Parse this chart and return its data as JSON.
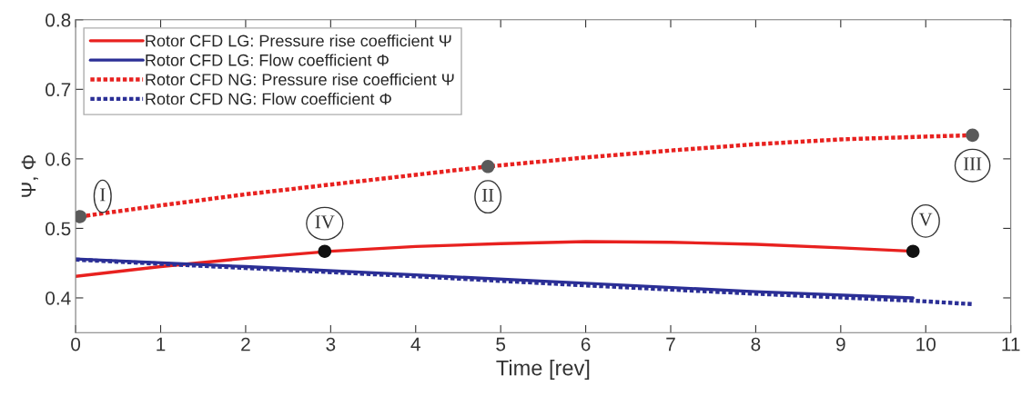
{
  "chart_data": {
    "type": "line",
    "xlabel": "Time [rev]",
    "ylabel": "Ψ, Φ",
    "xlim": [
      0,
      11
    ],
    "xticks": [
      0,
      1,
      2,
      3,
      4,
      5,
      6,
      7,
      8,
      9,
      10,
      11
    ],
    "ylim": [
      0.35,
      0.8
    ],
    "yticks": [
      0.4,
      0.5,
      0.6,
      0.7,
      0.8
    ],
    "grid": false,
    "legend": "top left",
    "marker": "none",
    "series": [
      {
        "name": "Rotor CFD LG: Pressure rise coefficient Ψ",
        "color": "#e8211f",
        "line_style": "solid",
        "x": [
          0,
          1,
          2,
          3,
          4,
          5,
          6,
          7,
          8,
          9,
          9.85
        ],
        "values": [
          0.431,
          0.445,
          0.457,
          0.467,
          0.474,
          0.478,
          0.481,
          0.48,
          0.477,
          0.472,
          0.467
        ]
      },
      {
        "name": "Rotor CFD LG: Flow coefficient Φ",
        "color": "#2b2f96",
        "line_style": "solid",
        "x": [
          0,
          2,
          4,
          6,
          8,
          9.85
        ],
        "values": [
          0.456,
          0.445,
          0.433,
          0.421,
          0.409,
          0.4
        ]
      },
      {
        "name": "Rotor CFD NG: Pressure rise coefficient Ψ",
        "color": "#e8211f",
        "line_style": "dotted",
        "x": [
          0.05,
          1,
          2,
          3,
          4,
          4.85,
          6,
          7,
          8,
          9,
          10,
          10.55
        ],
        "values": [
          0.517,
          0.533,
          0.549,
          0.563,
          0.577,
          0.589,
          0.602,
          0.612,
          0.621,
          0.628,
          0.632,
          0.634
        ]
      },
      {
        "name": "Rotor CFD NG: Flow coefficient Φ",
        "color": "#2b2f96",
        "line_style": "dotted",
        "x": [
          0,
          2,
          4,
          6,
          8,
          9.85,
          10.55
        ],
        "values": [
          0.455,
          0.443,
          0.431,
          0.418,
          0.406,
          0.396,
          0.391
        ]
      },
      {
        "type": "scatter",
        "marker": "circle",
        "colors": [
          "#5a5a5a",
          "#5a5a5a",
          "#5a5a5a"
        ],
        "x": [
          0.05,
          4.85,
          10.55
        ],
        "values": [
          0.517,
          0.589,
          0.634
        ]
      },
      {
        "type": "scatter",
        "marker": "circle",
        "colors": [
          "#111111",
          "#111111"
        ],
        "x": [
          2.93,
          9.85
        ],
        "values": [
          0.467,
          0.467
        ]
      }
    ],
    "annotations": [
      {
        "text": "I",
        "x": 0.05,
        "y": 0.517
      },
      {
        "text": "II",
        "x": 4.85,
        "y": 0.589
      },
      {
        "text": "III",
        "x": 10.55,
        "y": 0.634
      },
      {
        "text": "IV",
        "x": 2.93,
        "y": 0.467
      },
      {
        "text": "V",
        "x": 9.85,
        "y": 0.467
      }
    ]
  }
}
